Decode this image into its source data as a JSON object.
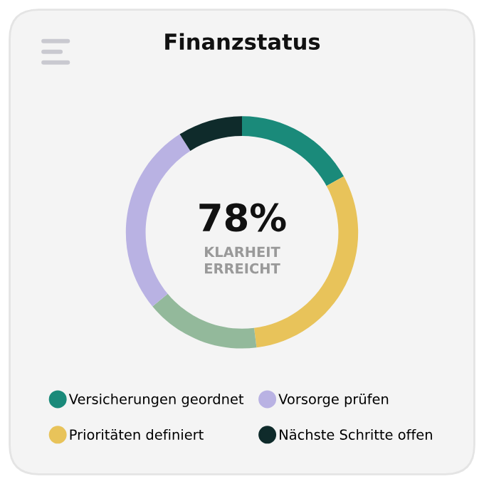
{
  "chart_data": {
    "type": "donut",
    "title": "Finanzstatus",
    "categories": [
      "Versicherungen geordnet",
      "Prioritäten definiert",
      null,
      "Vorsorge prüfen",
      "Nächste Schritte offen"
    ],
    "values": [
      17,
      31,
      16,
      27,
      9
    ],
    "colors": [
      "#1a8a7a",
      "#e8c35a",
      "#93b99b",
      "#b9b2e3",
      "#0f2b2b"
    ],
    "annotations": [
      "78%",
      "KLARHEIT\nERREICHT"
    ],
    "legend": "bottom"
  }
}
